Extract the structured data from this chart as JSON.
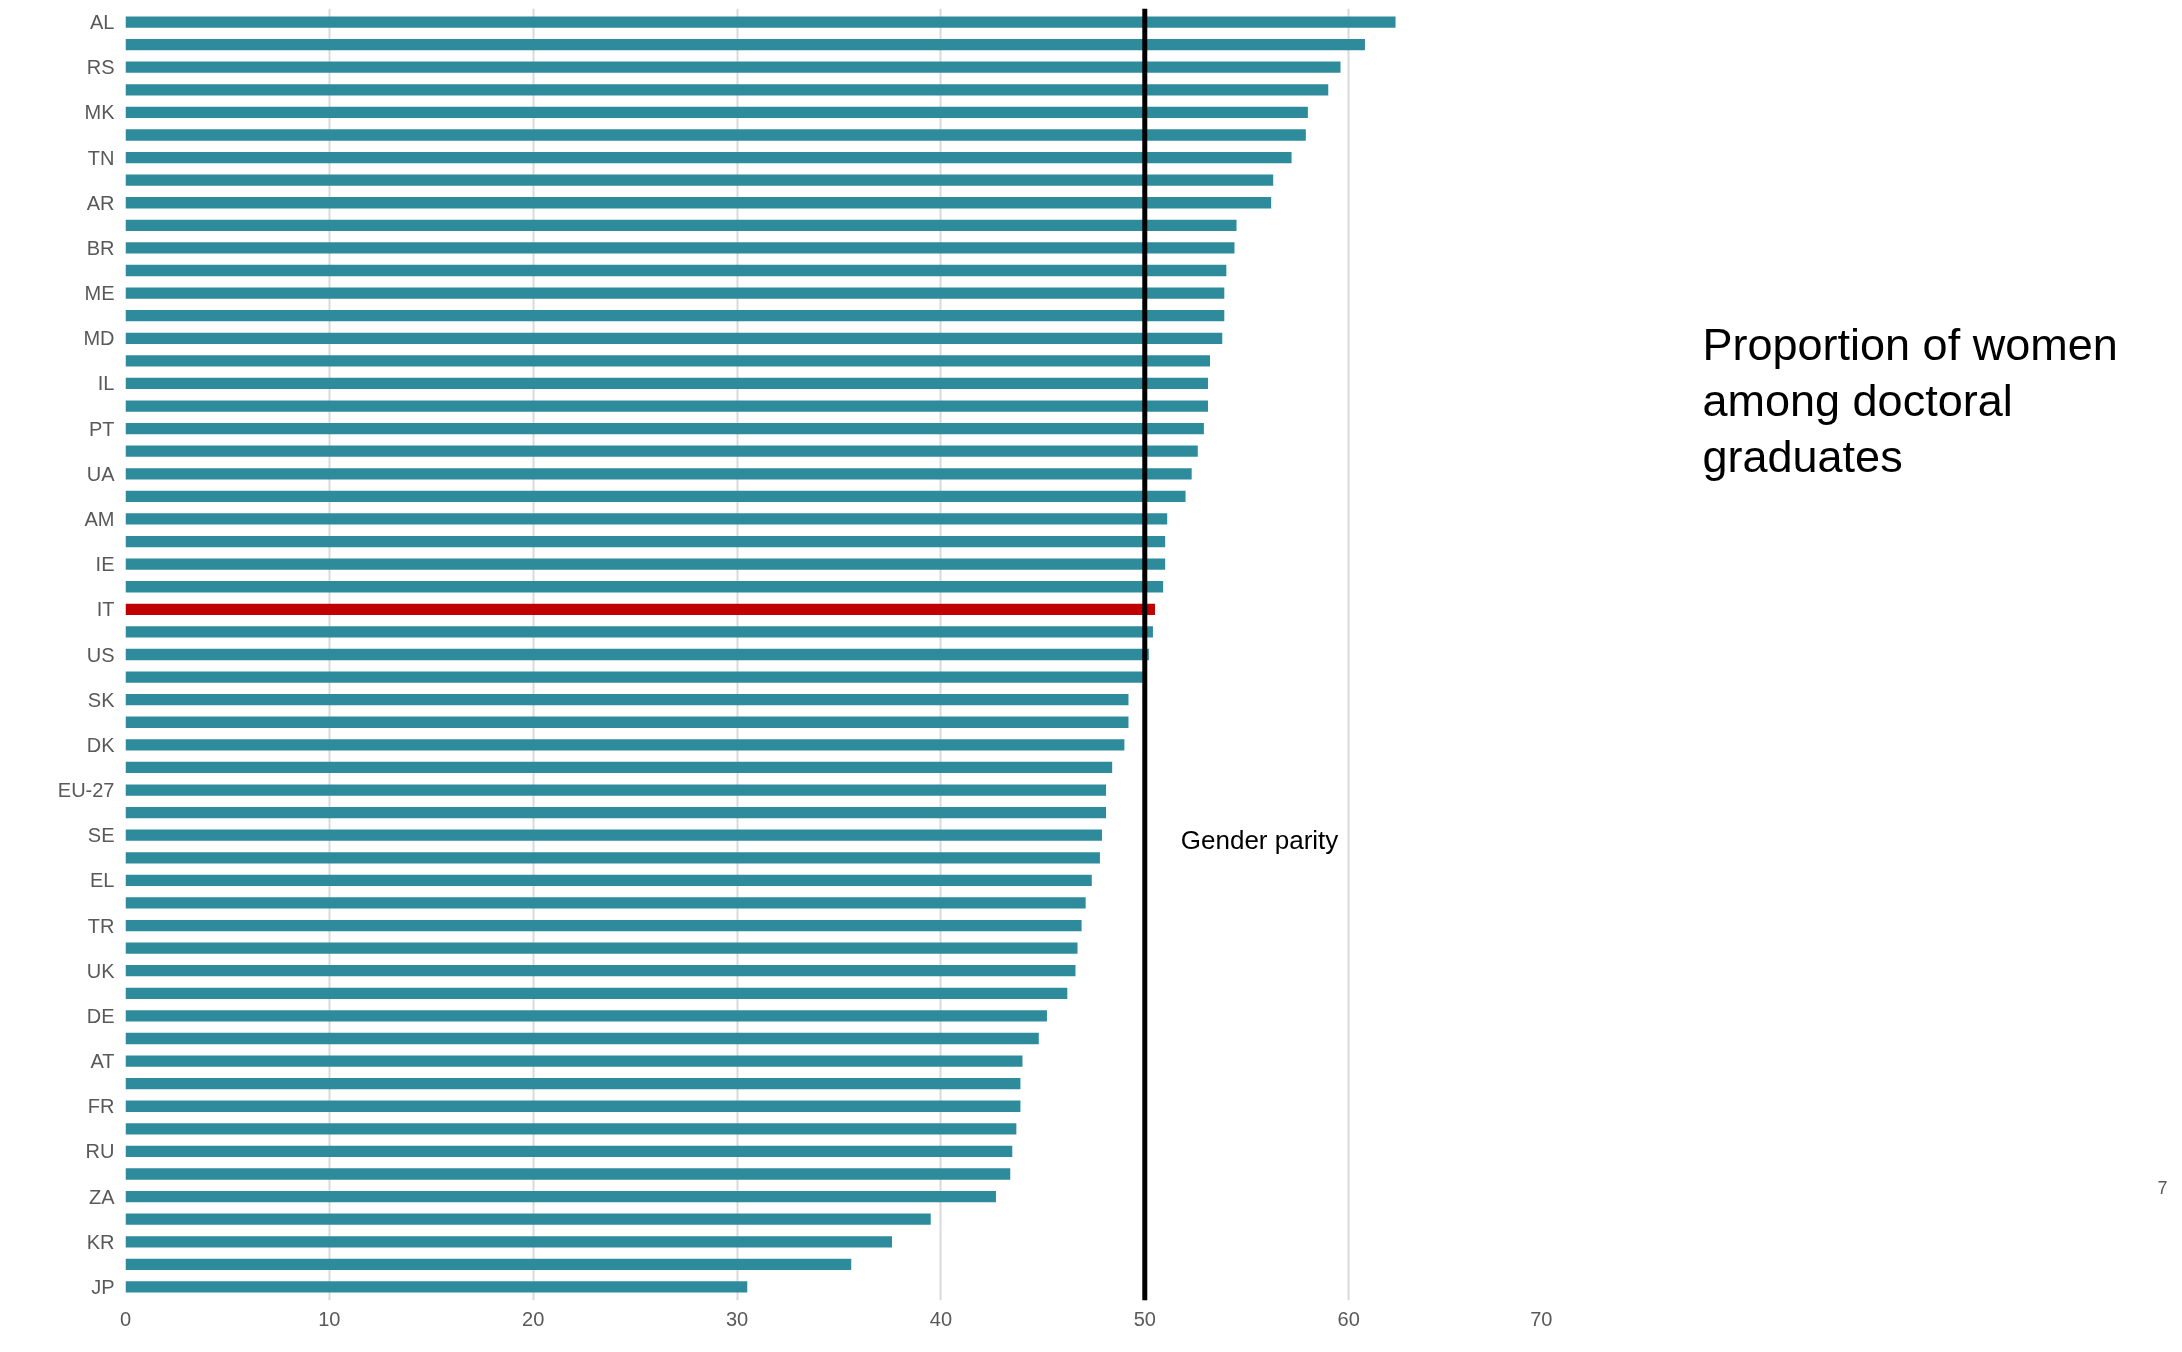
{
  "chart_data": {
    "type": "bar",
    "orientation": "horizontal",
    "title": "Proportion of women among doctoral graduates",
    "categories": [
      "AL",
      null,
      "RS",
      null,
      "MK",
      null,
      "TN",
      null,
      "AR",
      null,
      "BR",
      null,
      "ME",
      null,
      "MD",
      null,
      "IL",
      null,
      "PT",
      null,
      "UA",
      null,
      "AM",
      null,
      "IE",
      null,
      "IT",
      null,
      "US",
      null,
      "SK",
      null,
      "DK",
      null,
      "EU-27",
      null,
      "SE",
      null,
      "EL",
      null,
      "TR",
      null,
      "UK",
      null,
      "DE",
      null,
      "AT",
      null,
      "FR",
      null,
      "RU",
      null,
      "ZA",
      null,
      "KR",
      null,
      "JP"
    ],
    "values": [
      62.3,
      60.8,
      59.6,
      59.0,
      58.0,
      57.9,
      57.2,
      56.3,
      56.2,
      54.5,
      54.4,
      54.0,
      53.9,
      53.9,
      53.8,
      53.2,
      53.1,
      53.1,
      52.9,
      52.6,
      52.3,
      52.0,
      51.1,
      51.0,
      51.0,
      50.9,
      50.5,
      50.4,
      50.2,
      49.9,
      49.2,
      49.2,
      49.0,
      48.4,
      48.1,
      48.1,
      47.9,
      47.8,
      47.4,
      47.1,
      46.9,
      46.7,
      46.6,
      46.2,
      45.2,
      44.8,
      44.0,
      43.9,
      43.9,
      43.7,
      43.5,
      43.4,
      42.7,
      39.5,
      37.6,
      35.6,
      30.5
    ],
    "colors": [
      "#2e8b9c",
      "#2e8b9c",
      "#2e8b9c",
      "#2e8b9c",
      "#2e8b9c",
      "#2e8b9c",
      "#2e8b9c",
      "#2e8b9c",
      "#2e8b9c",
      "#2e8b9c",
      "#2e8b9c",
      "#2e8b9c",
      "#2e8b9c",
      "#2e8b9c",
      "#2e8b9c",
      "#2e8b9c",
      "#2e8b9c",
      "#2e8b9c",
      "#2e8b9c",
      "#2e8b9c",
      "#2e8b9c",
      "#2e8b9c",
      "#2e8b9c",
      "#2e8b9c",
      "#2e8b9c",
      "#2e8b9c",
      "#c00000",
      "#2e8b9c",
      "#2e8b9c",
      "#2e8b9c",
      "#2e8b9c",
      "#2e8b9c",
      "#2e8b9c",
      "#2e8b9c",
      "#2e8b9c",
      "#2e8b9c",
      "#2e8b9c",
      "#2e8b9c",
      "#2e8b9c",
      "#2e8b9c",
      "#2e8b9c",
      "#2e8b9c",
      "#2e8b9c",
      "#2e8b9c",
      "#2e8b9c",
      "#2e8b9c",
      "#2e8b9c",
      "#2e8b9c",
      "#2e8b9c",
      "#2e8b9c",
      "#2e8b9c",
      "#2e8b9c",
      "#2e8b9c",
      "#2e8b9c",
      "#2e8b9c",
      "#2e8b9c",
      "#2e8b9c"
    ],
    "xlim": [
      0,
      70
    ],
    "xticks": [
      0,
      10,
      20,
      30,
      40,
      50,
      60,
      70
    ],
    "grid": "x",
    "ref_lines": [
      {
        "axis": "x",
        "value": 50,
        "label": "Gender parity",
        "color": "#000000"
      }
    ],
    "annotations": [
      "7"
    ]
  }
}
